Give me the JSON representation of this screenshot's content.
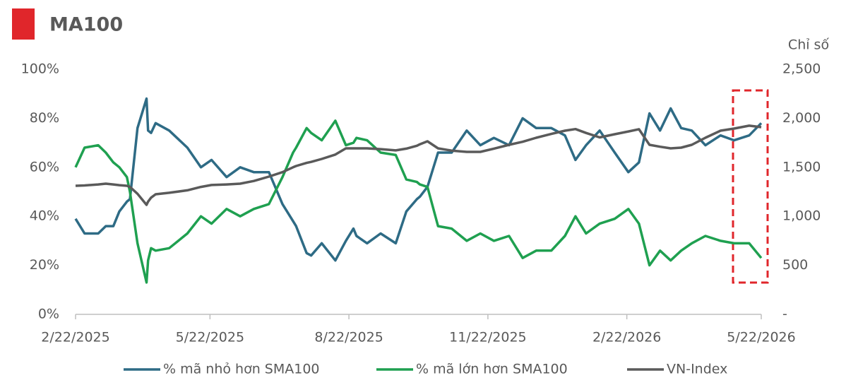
{
  "chart_data": {
    "type": "line",
    "title": "MA100",
    "y2_label": "Chỉ số",
    "x": [
      "2/22/2025",
      "2/28/2025",
      "3/9/2025",
      "3/14/2025",
      "3/19/2025",
      "3/23/2025",
      "3/28/2025",
      "3/30/2025",
      "4/4/2025",
      "4/10/2025",
      "4/11/2025",
      "4/13/2025",
      "4/16/2025",
      "4/25/2025",
      "5/7/2025",
      "5/16/2025",
      "5/23/2025",
      "6/2/2025",
      "6/11/2025",
      "6/20/2025",
      "6/30/2025",
      "7/9/2025",
      "7/16/2025",
      "7/18/2025",
      "7/25/2025",
      "7/28/2025",
      "8/4/2025",
      "8/13/2025",
      "8/20/2025",
      "8/25/2025",
      "8/27/2025",
      "9/3/2025",
      "9/12/2025",
      "9/22/2025",
      "9/29/2025",
      "10/6/2025",
      "10/8/2025",
      "10/13/2025",
      "10/20/2025",
      "10/29/2025",
      "11/8/2025",
      "11/17/2025",
      "11/26/2025",
      "12/6/2025",
      "12/15/2025",
      "12/24/2025",
      "1/3/2026",
      "1/12/2026",
      "1/19/2026",
      "1/26/2026",
      "2/4/2026",
      "2/14/2026",
      "2/23/2026",
      "3/2/2026",
      "3/9/2026",
      "3/16/2026",
      "3/23/2026",
      "3/30/2026",
      "4/6/2026",
      "4/15/2026",
      "4/25/2026",
      "5/4/2026",
      "5/14/2026",
      "5/22/2026"
    ],
    "series": [
      {
        "name": "% mã nhỏ hơn SMA100",
        "color": "#2e6b85",
        "values": [
          39,
          33,
          33,
          36,
          36,
          42,
          46,
          47,
          76,
          88,
          75,
          74,
          78,
          75,
          68,
          60,
          63,
          56,
          60,
          58,
          58,
          45,
          38,
          36,
          25,
          24,
          29,
          22,
          30,
          35,
          32,
          29,
          33,
          29,
          42,
          47,
          48,
          52,
          66,
          66,
          75,
          69,
          72,
          69,
          80,
          76,
          76,
          73,
          63,
          69,
          75,
          66,
          58,
          62,
          82,
          75,
          84,
          76,
          75,
          69,
          73,
          71,
          73,
          78
        ]
      },
      {
        "name": "% mã lớn hơn SMA100",
        "color": "#1fa050",
        "values": [
          60,
          68,
          69,
          66,
          62,
          60,
          56,
          50,
          29,
          13,
          22,
          27,
          26,
          27,
          33,
          40,
          37,
          43,
          40,
          43,
          45,
          56,
          66,
          68,
          76,
          74,
          71,
          79,
          69,
          70,
          72,
          71,
          66,
          65,
          55,
          54,
          53,
          52,
          36,
          35,
          30,
          33,
          30,
          32,
          23,
          26,
          26,
          32,
          40,
          33,
          37,
          39,
          43,
          37,
          20,
          26,
          22,
          26,
          29,
          32,
          30,
          29,
          29,
          23
        ]
      },
      {
        "name": "VN-Index",
        "color": "#5a5a5a",
        "axis": "y2",
        "values": [
          1311,
          1315,
          1325,
          1333,
          1325,
          1318,
          1311,
          1300,
          1230,
          1117,
          1150,
          1190,
          1225,
          1240,
          1265,
          1300,
          1319,
          1325,
          1333,
          1360,
          1405,
          1450,
          1500,
          1513,
          1545,
          1555,
          1585,
          1630,
          1693,
          1693,
          1693,
          1693,
          1685,
          1672,
          1690,
          1720,
          1735,
          1765,
          1693,
          1670,
          1657,
          1657,
          1690,
          1729,
          1760,
          1801,
          1840,
          1873,
          1890,
          1850,
          1805,
          1837,
          1865,
          1888,
          1729,
          1710,
          1693,
          1700,
          1729,
          1801,
          1873,
          1895,
          1924,
          1909
        ]
      }
    ],
    "xlim": [
      "2/22/2025",
      "5/22/2026"
    ],
    "xticks": [
      "2/22/2025",
      "5/22/2025",
      "8/22/2025",
      "11/22/2025",
      "2/22/2026",
      "5/22/2026"
    ],
    "ylim": [
      0,
      100
    ],
    "yticks": [
      {
        "value": 0,
        "label": "0%"
      },
      {
        "value": 20,
        "label": "20%"
      },
      {
        "value": 40,
        "label": "40%"
      },
      {
        "value": 60,
        "label": "60%"
      },
      {
        "value": 80,
        "label": "80%"
      },
      {
        "value": 100,
        "label": "100%"
      }
    ],
    "y2lim": [
      0,
      2500
    ],
    "y2ticks": [
      {
        "value": 0,
        "label": "-"
      },
      500,
      {
        "value": 1000,
        "label": "1,000"
      },
      {
        "value": 1500,
        "label": "1,500"
      },
      {
        "value": 2000,
        "label": "2,000"
      },
      {
        "value": 2500,
        "label": "2,500"
      }
    ],
    "legend": "bottom"
  }
}
